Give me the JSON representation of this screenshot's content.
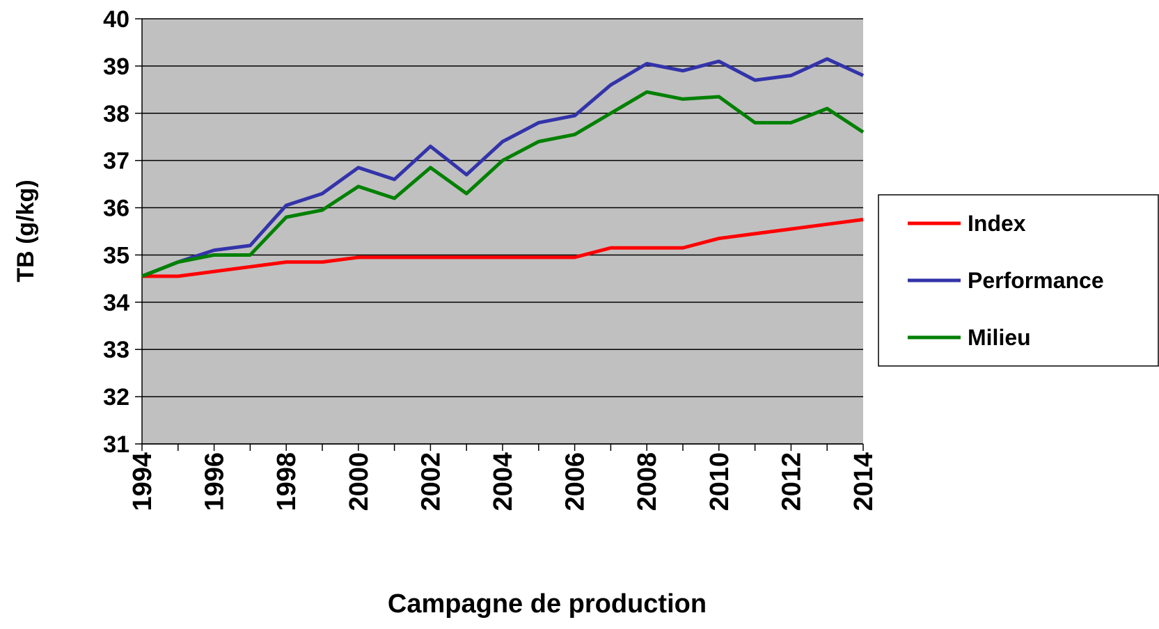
{
  "chart_data": {
    "type": "line",
    "x_label": "Campagne de production",
    "y_label": "TB (g/kg)",
    "x": [
      1994,
      1995,
      1996,
      1997,
      1998,
      1999,
      2000,
      2001,
      2002,
      2003,
      2004,
      2005,
      2006,
      2007,
      2008,
      2009,
      2010,
      2011,
      2012,
      2013,
      2014
    ],
    "series": [
      {
        "name": "Index",
        "color": "#ff0000",
        "values": [
          34.55,
          34.55,
          34.65,
          34.75,
          34.85,
          34.85,
          34.95,
          34.95,
          34.95,
          34.95,
          34.95,
          34.95,
          34.95,
          35.15,
          35.15,
          35.15,
          35.35,
          35.45,
          35.55,
          35.65,
          35.75
        ]
      },
      {
        "name": "Performance",
        "color": "#3333aa",
        "values": [
          34.55,
          34.85,
          35.1,
          35.2,
          36.05,
          36.3,
          36.85,
          36.6,
          37.3,
          36.7,
          37.4,
          37.8,
          37.95,
          38.6,
          39.05,
          38.9,
          39.1,
          38.7,
          38.8,
          39.15,
          38.8
        ]
      },
      {
        "name": "Milieu",
        "color": "#008000",
        "values": [
          34.55,
          34.85,
          35.0,
          35.0,
          35.8,
          35.95,
          36.45,
          36.2,
          36.85,
          36.3,
          37.0,
          37.4,
          37.55,
          38.0,
          38.45,
          38.3,
          38.35,
          37.8,
          37.8,
          38.1,
          37.6
        ]
      }
    ],
    "xlim": [
      1994,
      2014
    ],
    "xticks": [
      1994,
      1996,
      1998,
      2000,
      2002,
      2004,
      2006,
      2008,
      2010,
      2012,
      2014
    ],
    "ylim": [
      31,
      40
    ],
    "yticks": [
      31,
      32,
      33,
      34,
      35,
      36,
      37,
      38,
      39,
      40
    ],
    "grid": true,
    "legend": "right",
    "background": "#c0c0c0"
  }
}
